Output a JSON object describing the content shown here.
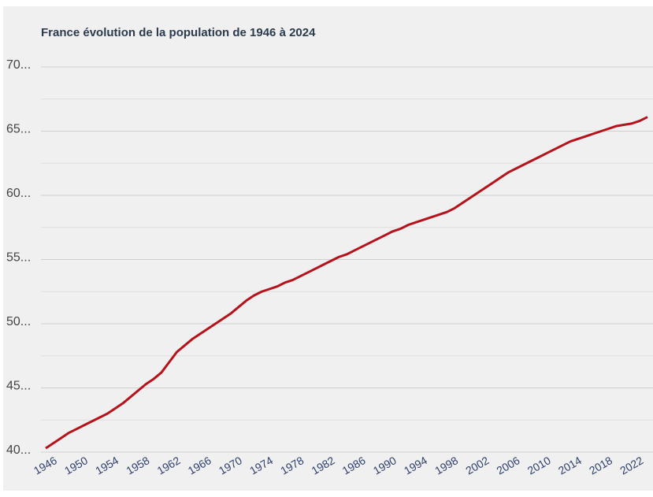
{
  "chart_data": {
    "type": "line",
    "title": "France évolution de la population de 1946 à 2024",
    "x": [
      1946,
      1947,
      1948,
      1949,
      1950,
      1951,
      1952,
      1953,
      1954,
      1955,
      1956,
      1957,
      1958,
      1959,
      1960,
      1961,
      1962,
      1963,
      1964,
      1965,
      1966,
      1967,
      1968,
      1969,
      1970,
      1971,
      1972,
      1973,
      1974,
      1975,
      1976,
      1977,
      1978,
      1979,
      1980,
      1981,
      1982,
      1983,
      1984,
      1985,
      1986,
      1987,
      1988,
      1989,
      1990,
      1991,
      1992,
      1993,
      1994,
      1995,
      1996,
      1997,
      1998,
      1999,
      2000,
      2001,
      2002,
      2003,
      2004,
      2005,
      2006,
      2007,
      2008,
      2009,
      2010,
      2011,
      2012,
      2013,
      2014,
      2015,
      2016,
      2017,
      2018,
      2019,
      2020,
      2021,
      2022,
      2023,
      2024
    ],
    "series": [
      {
        "color": "#b5121b",
        "values": [
          40.3,
          40.7,
          41.1,
          41.5,
          41.8,
          42.1,
          42.4,
          42.7,
          43.0,
          43.4,
          43.8,
          44.3,
          44.8,
          45.3,
          45.7,
          46.2,
          47.0,
          47.8,
          48.3,
          48.8,
          49.2,
          49.6,
          50.0,
          50.4,
          50.8,
          51.3,
          51.8,
          52.2,
          52.5,
          52.7,
          52.9,
          53.2,
          53.4,
          53.7,
          54.0,
          54.3,
          54.6,
          54.9,
          55.2,
          55.4,
          55.7,
          56.0,
          56.3,
          56.6,
          56.9,
          57.2,
          57.4,
          57.7,
          57.9,
          58.1,
          58.3,
          58.5,
          58.7,
          59.0,
          59.4,
          59.8,
          60.2,
          60.6,
          61.0,
          61.4,
          61.8,
          62.1,
          62.4,
          62.7,
          63.0,
          63.3,
          63.6,
          63.9,
          64.2,
          64.4,
          64.6,
          64.8,
          65.0,
          65.2,
          65.4,
          65.5,
          65.6,
          65.8,
          66.1
        ]
      }
    ],
    "xlim": [
      1946,
      2024
    ],
    "xticks": [
      1946,
      1950,
      1954,
      1958,
      1962,
      1966,
      1970,
      1974,
      1978,
      1982,
      1986,
      1990,
      1994,
      1998,
      2002,
      2006,
      2010,
      2014,
      2018,
      2022
    ],
    "ylim": [
      40,
      70
    ],
    "yticks": [
      {
        "value": 40,
        "label": "40..."
      },
      {
        "value": 45,
        "label": "45..."
      },
      {
        "value": 50,
        "label": "50..."
      },
      {
        "value": 55,
        "label": "55..."
      },
      {
        "value": 60,
        "label": "60..."
      },
      {
        "value": 65,
        "label": "65..."
      },
      {
        "value": 70,
        "label": "70..."
      }
    ],
    "y_minor_ticks": [
      42.5,
      47.5,
      52.5,
      57.5,
      62.5,
      67.5
    ],
    "grid": true
  }
}
